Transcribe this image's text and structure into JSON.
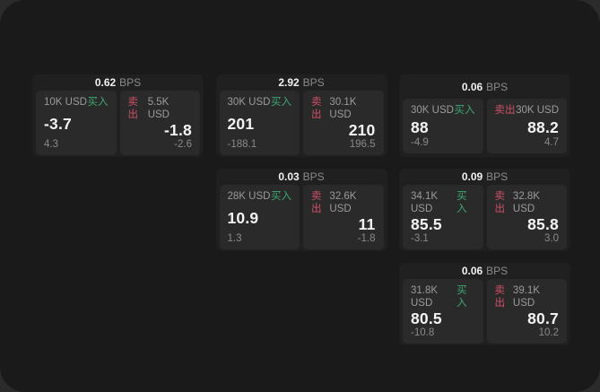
{
  "page": {
    "unit_label": "BPS",
    "buy_label": "买入",
    "sell_label": "卖出"
  },
  "colors": {
    "backdrop": "#2b2b2b",
    "page_bg": "#1a1a1a",
    "card_bg": "#202020",
    "panel_bg": "#2a2a2a",
    "buy_green": "#3ea873",
    "sell_red": "#cf5066",
    "text_primary": "#f4f4f4",
    "text_muted": "#9b9b9b"
  },
  "cards": [
    {
      "row": 1,
      "col": 1,
      "bps_value": "0.62",
      "buy": {
        "size": "10K USD",
        "price": "-3.7",
        "delta": "4.3"
      },
      "sell": {
        "size": "5.5K USD",
        "price": "-1.8",
        "delta": "-2.6"
      }
    },
    {
      "row": 1,
      "col": 2,
      "bps_value": "2.92",
      "buy": {
        "size": "30K USD",
        "price": "201",
        "delta": "-188.1"
      },
      "sell": {
        "size": "30.1K USD",
        "price": "210",
        "delta": "196.5"
      }
    },
    {
      "row": 1,
      "col": 3,
      "bps_value": "0.06",
      "buy": {
        "size": "30K USD",
        "price": "88",
        "delta": "-4.9"
      },
      "sell": {
        "size": "30K USD",
        "price": "88.2",
        "delta": "4.7"
      }
    },
    {
      "row": 2,
      "col": 2,
      "bps_value": "0.03",
      "buy": {
        "size": "28K USD",
        "price": "10.9",
        "delta": "1.3"
      },
      "sell": {
        "size": "32.6K USD",
        "price": "11",
        "delta": "-1.8"
      }
    },
    {
      "row": 2,
      "col": 3,
      "bps_value": "0.09",
      "buy": {
        "size": "34.1K USD",
        "price": "85.5",
        "delta": "-3.1"
      },
      "sell": {
        "size": "32.8K USD",
        "price": "85.8",
        "delta": "3.0"
      }
    },
    {
      "row": 3,
      "col": 3,
      "bps_value": "0.06",
      "buy": {
        "size": "31.8K USD",
        "price": "80.5",
        "delta": "-10.8"
      },
      "sell": {
        "size": "39.1K USD",
        "price": "80.7",
        "delta": "10.2"
      }
    }
  ]
}
